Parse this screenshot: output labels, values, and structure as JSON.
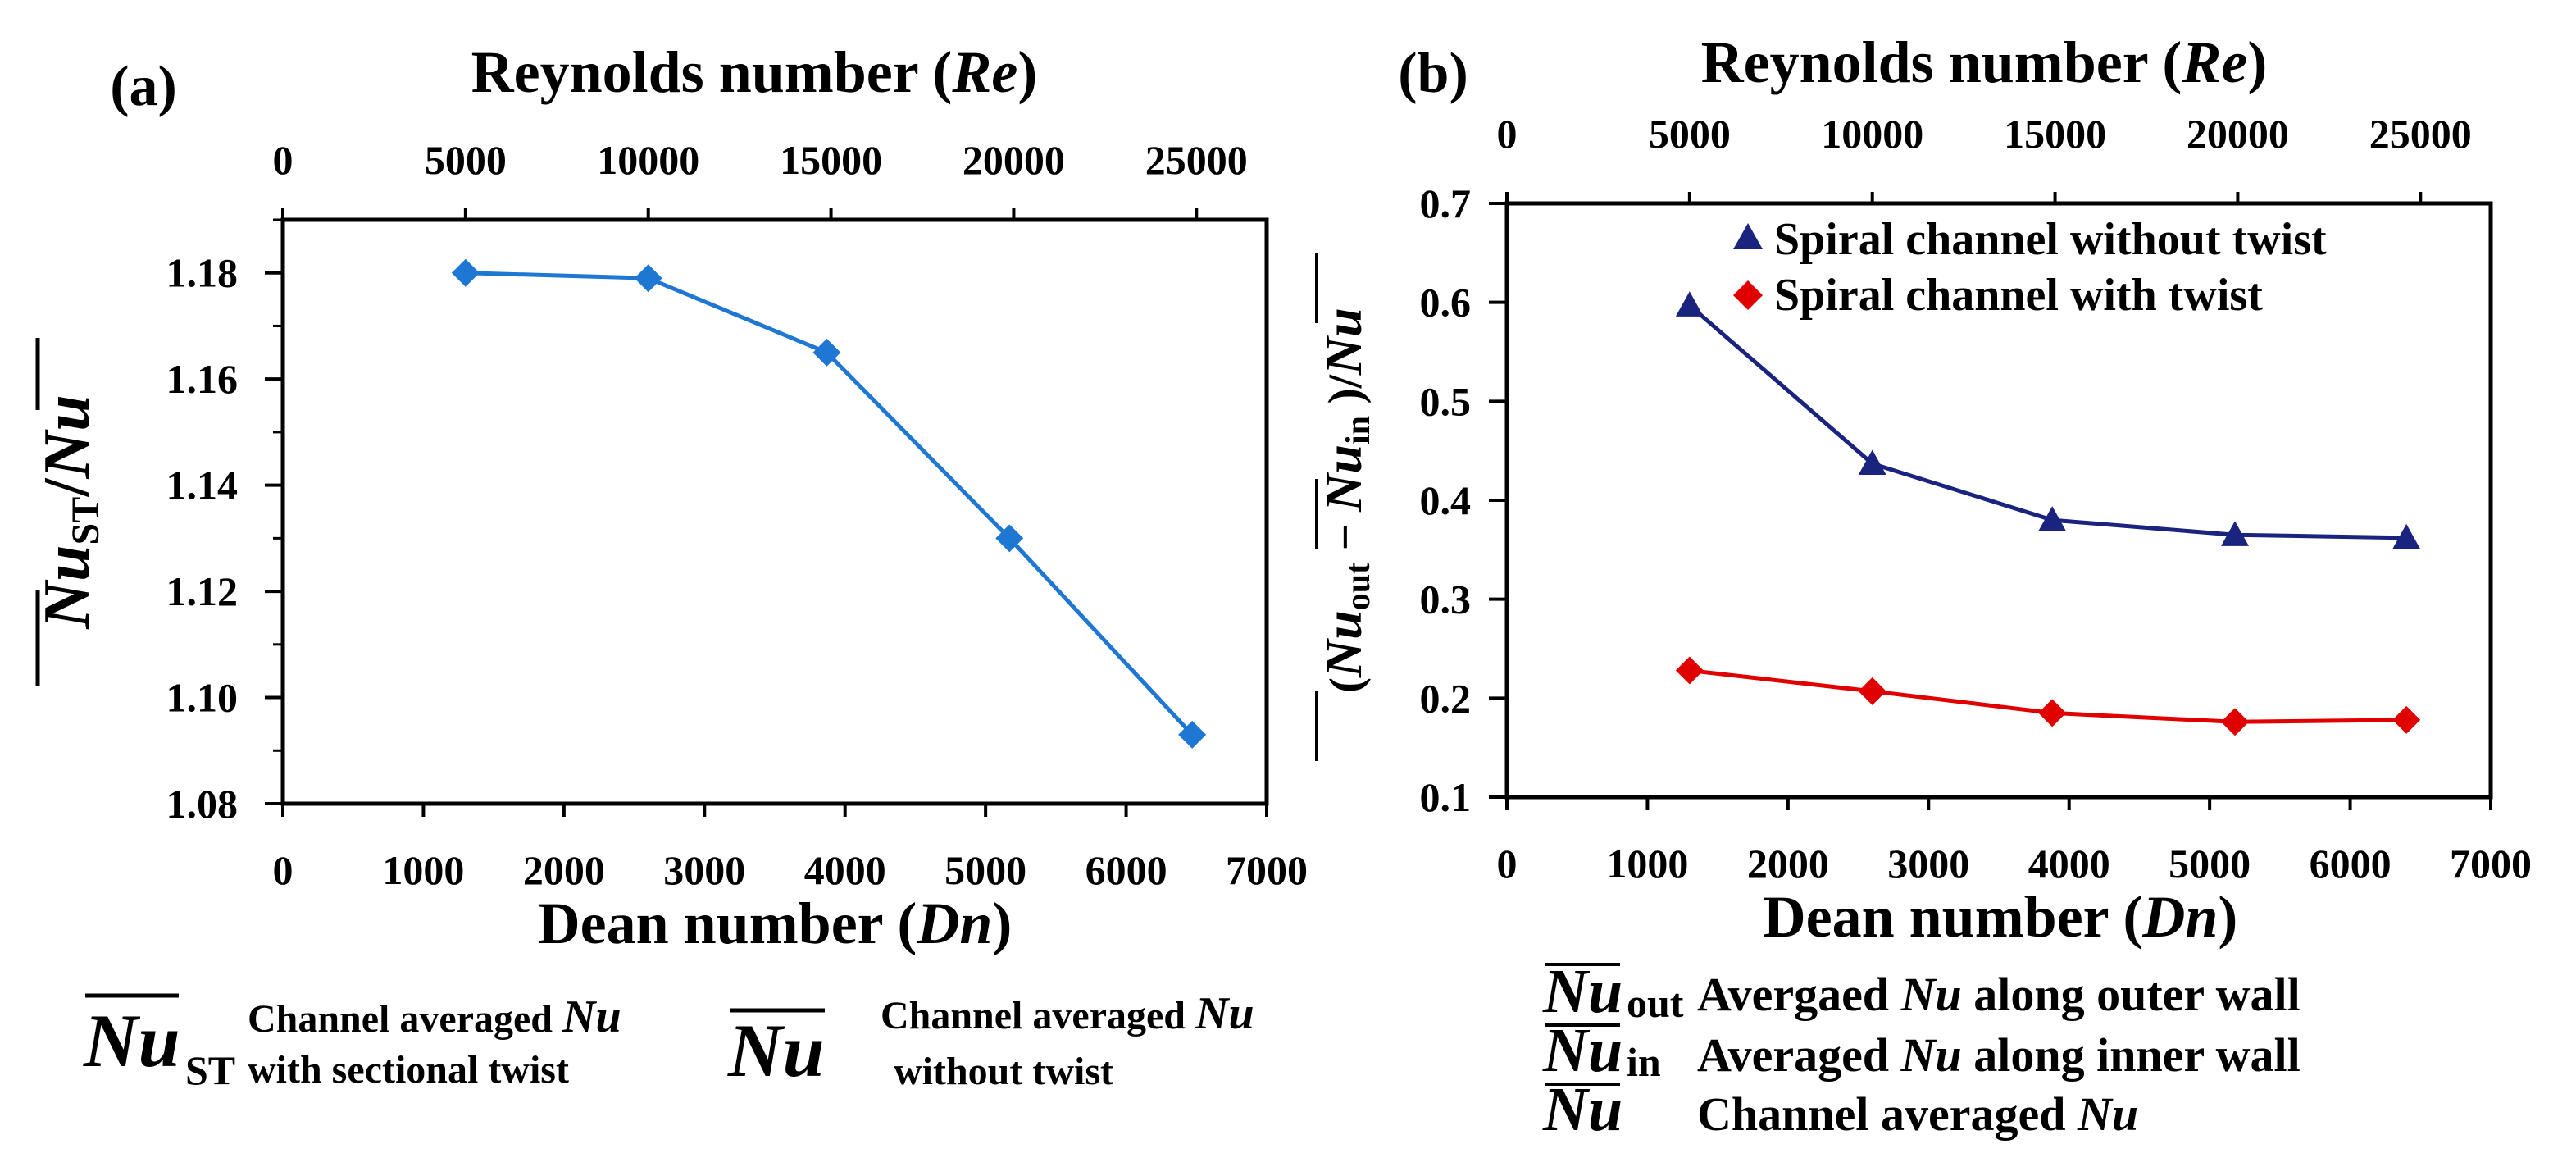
{
  "chart_data": [
    {
      "panel": "(a)",
      "type": "line",
      "xlabel": "Dean number (Dn)",
      "x_top_label": "Reynolds number (Re)",
      "ylabel": "Nu_ST / Nu",
      "xlim": [
        0,
        7000
      ],
      "ylim": [
        1.08,
        1.19
      ],
      "x_ticks": [
        "0",
        "1000",
        "2000",
        "3000",
        "4000",
        "5000",
        "6000",
        "7000"
      ],
      "y_ticks": [
        "1.08",
        "1.10",
        "1.12",
        "1.14",
        "1.16",
        "1.18"
      ],
      "top_ticks": [
        "0",
        "5000",
        "10000",
        "15000",
        "20000",
        "25000"
      ],
      "top_tick_dn": [
        0,
        1300,
        2600,
        3900,
        5200,
        6500
      ],
      "grid": false,
      "series": [
        {
          "color": "#1f77d4",
          "marker": "diamond",
          "x": [
            1300,
            2600,
            3870,
            5170,
            6470
          ],
          "y": [
            1.18,
            1.179,
            1.165,
            1.13,
            1.093
          ]
        }
      ]
    },
    {
      "panel": "(b)",
      "type": "line",
      "xlabel": "Dean number (Dn)",
      "x_top_label": "Reynolds number (Re)",
      "ylabel": "(Nu_out − Nu_in)/Nu",
      "xlim": [
        0,
        7000
      ],
      "ylim": [
        0.1,
        0.7
      ],
      "x_ticks": [
        "0",
        "1000",
        "2000",
        "3000",
        "4000",
        "5000",
        "6000",
        "7000"
      ],
      "y_ticks": [
        "0.1",
        "0.2",
        "0.3",
        "0.4",
        "0.5",
        "0.6",
        "0.7"
      ],
      "top_ticks": [
        "0",
        "5000",
        "10000",
        "15000",
        "20000",
        "25000"
      ],
      "top_tick_dn": [
        0,
        1300,
        2600,
        3900,
        5200,
        6500
      ],
      "grid": false,
      "legend": "top-right",
      "series": [
        {
          "name": "Spiral channel without twist",
          "color": "#1a237e",
          "marker": "triangle",
          "x": [
            1300,
            2600,
            3880,
            5180,
            6400
          ],
          "y": [
            0.597,
            0.437,
            0.38,
            0.365,
            0.362
          ]
        },
        {
          "name": "Spiral channel with twist",
          "color": "#e00000",
          "marker": "diamond",
          "x": [
            1300,
            2600,
            3880,
            5180,
            6400
          ],
          "y": [
            0.228,
            0.207,
            0.185,
            0.176,
            0.178
          ]
        }
      ]
    }
  ],
  "notes_a": {
    "sym": "Nu",
    "sub": "ST",
    "desc1_prefix": "Channel averaged ",
    "desc1_it": "Nu",
    "desc1_line2": "with sectional twist",
    "sym2": "Nu",
    "desc2_prefix": "Channel averaged ",
    "desc2_it": "Nu",
    "desc2_line2": "without twist"
  },
  "notes_b": {
    "sym": "Nu",
    "sub_out": "out",
    "sub_in": "in",
    "desc_out_prefix": "Avergaed ",
    "desc_out_it": "Nu",
    "desc_out_suffix": " along outer wall",
    "desc_in_prefix": "Averaged ",
    "desc_in_it": "Nu",
    "desc_in_suffix": " along inner wall",
    "desc_avg_prefix": "Channel averaged ",
    "desc_avg_it": "Nu"
  }
}
